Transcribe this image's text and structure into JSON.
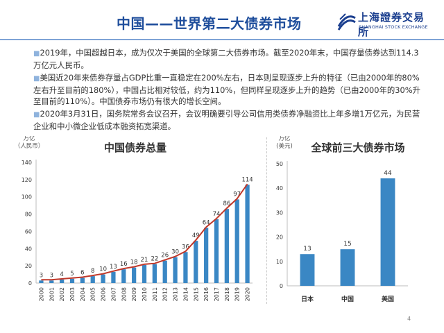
{
  "header": {
    "title": "中国——世界第二大债券市场",
    "logo_name": "上海證券交易所",
    "logo_sub": "SHANGHAI STOCK EXCHANGE"
  },
  "bullets": [
    "2019年，中国超越日本，成为仅次于美国的全球第二大债券市场。截至2020年末，中国存量债券达到114.3万亿元人民币。",
    "美国近20年来债券存量占GDP比重一直稳定在200%左右，日本则呈现逐步上升的特征（已由2000年的80%左右升至目前的180%），中国占比相对较低，约为110%，但同样呈现逐步上升的趋势（已由2000年的30%升至目前的110%）。中国债券市场仍有很大的增长空间。",
    "2020年3月31日，国务院常务会议召开，会议明确要引导公司信用类债券净融资比上年多增1万亿元，为民营企业和中小微企业低成本融资拓宽渠道。"
  ],
  "page_number": "4",
  "chart_data": [
    {
      "type": "bar",
      "title": "中国债券总量",
      "unit_lines": [
        "万亿",
        "（人民币）"
      ],
      "categories": [
        "2000",
        "2001",
        "2002",
        "2003",
        "2004",
        "2005",
        "2006",
        "2007",
        "2008",
        "2009",
        "2010",
        "2011",
        "2012",
        "2013",
        "2014",
        "2015",
        "2016",
        "2017",
        "2018",
        "2019",
        "2020"
      ],
      "values": [
        3,
        3,
        4,
        5,
        6,
        8,
        10,
        13,
        16,
        18,
        21,
        22,
        26,
        30,
        36,
        49,
        64,
        74,
        86,
        97,
        114
      ],
      "ylim": [
        0,
        140
      ],
      "yticks": [
        0,
        20,
        40,
        60,
        80,
        100,
        120,
        140
      ],
      "bar_color": "#3a87c4",
      "trend_color": "#c0392b",
      "grid": false
    },
    {
      "type": "bar",
      "title": "全球前三大债券市场",
      "unit_lines": [
        "万亿",
        "(美元)"
      ],
      "categories": [
        "日本",
        "中国",
        "美国"
      ],
      "values": [
        13,
        15,
        44
      ],
      "ylim": [
        0,
        50
      ],
      "yticks": [
        0,
        10,
        20,
        30,
        40,
        50
      ],
      "bar_color": "#3a87c4",
      "grid": false
    }
  ]
}
